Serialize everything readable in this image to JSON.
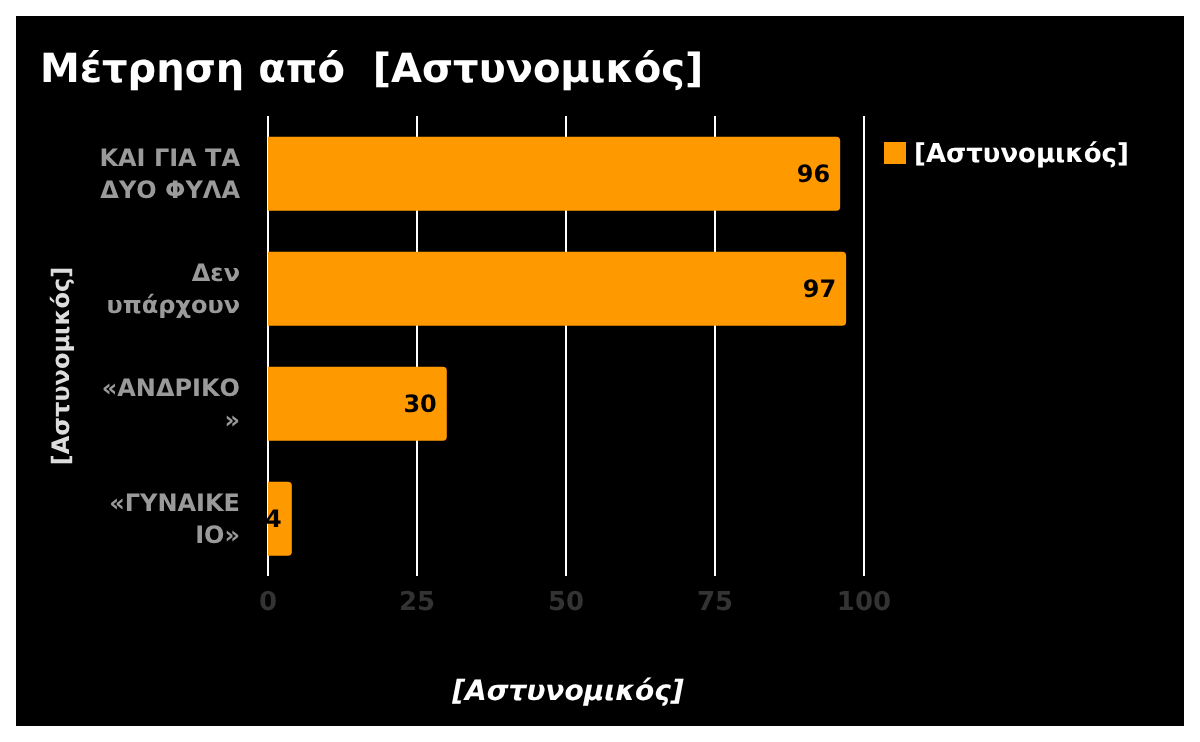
{
  "chart_data": {
    "type": "bar",
    "orientation": "horizontal",
    "title": "Μέτρηση από  [Αστυνομικός]",
    "xlabel": "[Αστυνομικός]",
    "ylabel": "[Αστυνομικός]",
    "categories": [
      "ΚΑΙ ΓΙΑ ΤΑ ΔΥΟ ΦΥΛΑ",
      "Δεν υπάρχουν",
      "«ΑΝΔΡΙΚΟ»",
      "«ΓΥΝΑΙΚΕΙΟ»"
    ],
    "series": [
      {
        "name": "[Αστυνομικός]",
        "color": "#ff9900",
        "values": [
          96,
          97,
          30,
          4
        ]
      }
    ],
    "xlim": [
      0,
      100
    ],
    "xticks": [
      0,
      25,
      50,
      75,
      100
    ],
    "grid": "x",
    "legend": "top right",
    "data_labels": true
  }
}
